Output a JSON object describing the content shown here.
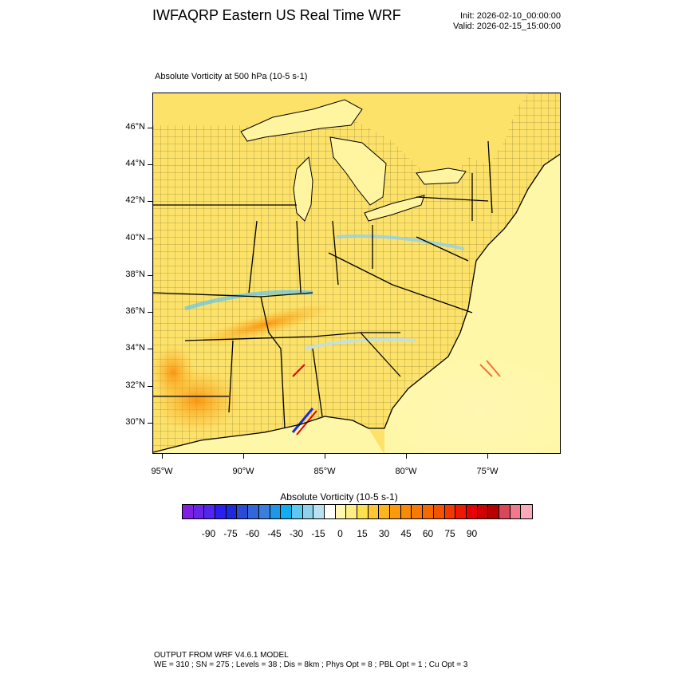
{
  "header": {
    "title": "IWFAQRP Eastern US Real Time WRF",
    "init": "Init: 2026-02-10_00:00:00",
    "valid": "Valid: 2026-02-15_15:00:00"
  },
  "map": {
    "subtitle": "Absolute Vorticity at 500 hPa   (10-5 s-1)",
    "lat_labels": [
      "46°N",
      "44°N",
      "42°N",
      "40°N",
      "38°N",
      "36°N",
      "34°N",
      "32°N",
      "30°N"
    ],
    "lon_labels": [
      "95°W",
      "90°W",
      "85°W",
      "80°W",
      "75°W"
    ],
    "colors": {
      "background": "#fde26a",
      "water": "#fff7a8",
      "boundary": "#000000"
    }
  },
  "colorbar": {
    "title": "Absolute Vorticity  (10-5 s-1)",
    "labels": [
      "-90",
      "-75",
      "-60",
      "-45",
      "-30",
      "-15",
      "0",
      "15",
      "30",
      "45",
      "60",
      "75",
      "90"
    ],
    "colors": [
      "#7f1fe0",
      "#6a24e8",
      "#5226f0",
      "#2a1ff0",
      "#1c2be0",
      "#2a4ad8",
      "#3366d6",
      "#3a7fe0",
      "#1f96e8",
      "#10aef0",
      "#5ec8f0",
      "#90d2ec",
      "#b8e2f2",
      "#ffffff",
      "#fff7b2",
      "#ffee85",
      "#fde04f",
      "#fdc730",
      "#fdb41f",
      "#fb9a0b",
      "#f98a05",
      "#f77a02",
      "#f56a00",
      "#f35400",
      "#f13a00",
      "#ef1800",
      "#e60000",
      "#cf0000",
      "#b80000",
      "#d8485a",
      "#f07a8a",
      "#fbaaba"
    ]
  },
  "footer": {
    "line1": "OUTPUT FROM WRF V4.6.1 MODEL",
    "line2": "WE = 310 ; SN = 275 ; Levels = 38 ; Dis = 8km ; Phys Opt = 8 ; PBL Opt = 1 ; Cu Opt = 3"
  }
}
